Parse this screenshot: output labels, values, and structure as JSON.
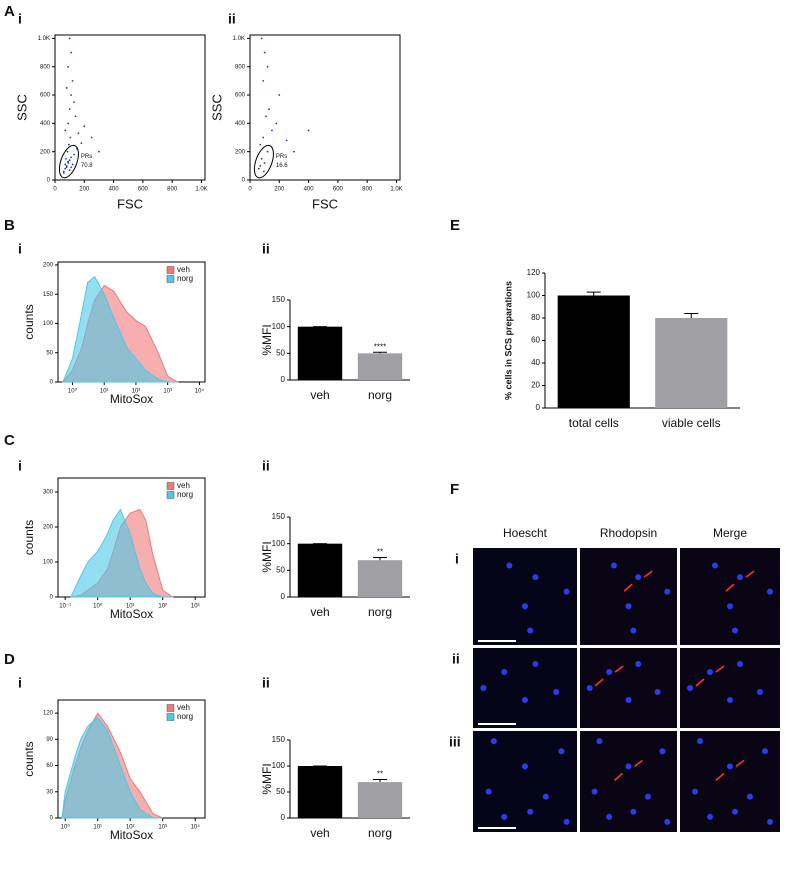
{
  "panel_labels": [
    "A",
    "i",
    "ii",
    "B",
    "i",
    "ii",
    "C",
    "i",
    "ii",
    "D",
    "i",
    "ii",
    "E",
    "F"
  ],
  "chart_data": [
    {
      "type": "scatter",
      "x_label": "FSC",
      "y_label": "SSC",
      "color": "#2233cc",
      "gate_label": "PRs",
      "gate_value": 70.8,
      "x": [
        60,
        70,
        80,
        90,
        100,
        110,
        120,
        85,
        95,
        105,
        75,
        130,
        150,
        90,
        100,
        110,
        70,
        120,
        140,
        180,
        200,
        250,
        90,
        110,
        130,
        100,
        80,
        160,
        300,
        60,
        80,
        90,
        100,
        70,
        110
      ],
      "y": [
        50,
        80,
        100,
        120,
        140,
        90,
        110,
        200,
        250,
        300,
        150,
        180,
        220,
        400,
        500,
        600,
        350,
        700,
        450,
        260,
        380,
        300,
        800,
        900,
        550,
        1000,
        650,
        330,
        200,
        60,
        90,
        130,
        70,
        110,
        160
      ],
      "xlim": [
        0,
        1024
      ],
      "ylim": [
        0,
        1024
      ],
      "xticks": [
        0,
        200,
        400,
        600,
        800,
        {
          "value": 1000,
          "label": "1.0K"
        }
      ],
      "yticks": [
        0,
        200,
        400,
        600,
        800,
        {
          "value": 1000,
          "label": "1.0K"
        }
      ]
    },
    {
      "type": "scatter",
      "x_label": "FSC",
      "y_label": "SSC",
      "color": "#2233cc",
      "gate_label": "PRs",
      "gate_value": 16.6,
      "x": [
        60,
        80,
        100,
        120,
        90,
        110,
        70,
        150,
        200,
        130,
        100,
        250,
        90,
        300,
        180,
        80,
        120,
        400,
        70,
        95
      ],
      "y": [
        80,
        150,
        120,
        200,
        300,
        450,
        250,
        350,
        600,
        500,
        900,
        280,
        700,
        200,
        400,
        1000,
        800,
        350,
        100,
        60
      ],
      "xlim": [
        0,
        1024
      ],
      "ylim": [
        0,
        1024
      ],
      "xticks": [
        0,
        200,
        400,
        600,
        800,
        {
          "value": 1000,
          "label": "1.0K"
        }
      ],
      "yticks": [
        0,
        200,
        400,
        600,
        800,
        {
          "value": 1000,
          "label": "1.0K"
        }
      ]
    },
    {
      "type": "line",
      "x_label": "MitoSox",
      "y_label": "counts",
      "log_x": true,
      "legend": "upper right",
      "x": [
        0.5,
        1,
        2,
        3,
        5,
        10,
        20,
        50,
        100,
        200,
        500,
        1000,
        2000
      ],
      "series": [
        {
          "name": "veh",
          "color": "#f07878",
          "values": [
            0,
            20,
            60,
            100,
            140,
            165,
            155,
            120,
            105,
            95,
            50,
            10,
            0
          ]
        },
        {
          "name": "norg",
          "color": "#4cc8e8",
          "values": [
            0,
            40,
            120,
            170,
            180,
            150,
            110,
            60,
            40,
            20,
            5,
            0,
            0
          ]
        }
      ],
      "xlim": [
        0.35,
        15000
      ],
      "ylim": [
        0,
        205
      ],
      "xticks": [
        {
          "value": 1,
          "label": "10⁰"
        },
        {
          "value": 10,
          "label": "10¹"
        },
        {
          "value": 100,
          "label": "10²"
        },
        {
          "value": 1000,
          "label": "10³"
        },
        {
          "value": 10000,
          "label": "10⁴"
        }
      ],
      "yticks": [
        0,
        50,
        100,
        150,
        200
      ]
    },
    {
      "type": "bar",
      "y_label": "%MFI",
      "categories": [
        "veh",
        "norg"
      ],
      "values": [
        100,
        50
      ],
      "errors": [
        0,
        2
      ],
      "colors": [
        "#000000",
        "#a0a0a4"
      ],
      "annotation": "****",
      "ylim": [
        0,
        150
      ],
      "yticks": [
        0,
        50,
        100,
        150
      ]
    },
    {
      "type": "line",
      "x_label": "MitoSox",
      "y_label": "counts",
      "log_x": true,
      "legend": "upper right",
      "x": [
        0.15,
        0.3,
        0.5,
        1,
        2,
        3,
        5,
        10,
        20,
        30,
        50,
        100,
        200
      ],
      "series": [
        {
          "name": "veh",
          "color": "#f07878",
          "values": [
            0,
            5,
            20,
            40,
            80,
            130,
            200,
            240,
            250,
            220,
            120,
            20,
            0
          ]
        },
        {
          "name": "norg",
          "color": "#4cc8e8",
          "values": [
            0,
            60,
            100,
            130,
            180,
            220,
            250,
            180,
            80,
            40,
            10,
            0,
            0
          ]
        }
      ],
      "xlim": [
        0.06,
        2000
      ],
      "ylim": [
        0,
        340
      ],
      "xticks": [
        {
          "value": 0.1,
          "label": "10⁻¹"
        },
        {
          "value": 1,
          "label": "10⁰"
        },
        {
          "value": 10,
          "label": "10¹"
        },
        {
          "value": 100,
          "label": "10²"
        },
        {
          "value": 1000,
          "label": "10³"
        }
      ],
      "yticks": [
        0,
        100,
        200,
        300
      ]
    },
    {
      "type": "bar",
      "y_label": "%MFI",
      "categories": [
        "veh",
        "norg"
      ],
      "values": [
        100,
        69
      ],
      "errors": [
        0,
        5
      ],
      "colors": [
        "#000000",
        "#a0a0a4"
      ],
      "annotation": "**",
      "ylim": [
        0,
        150
      ],
      "yticks": [
        0,
        50,
        100,
        150
      ]
    },
    {
      "type": "line",
      "x_label": "MitoSox",
      "y_label": "counts",
      "log_x": true,
      "legend": "upper right",
      "x": [
        0.8,
        1,
        2,
        3,
        5,
        10,
        20,
        50,
        100,
        200,
        500,
        1000
      ],
      "series": [
        {
          "name": "veh",
          "color": "#f07878",
          "values": [
            0,
            20,
            60,
            80,
            100,
            120,
            105,
            75,
            45,
            30,
            5,
            0
          ]
        },
        {
          "name": "norg",
          "color": "#4cc8e8",
          "values": [
            0,
            30,
            70,
            90,
            105,
            115,
            100,
            60,
            30,
            10,
            0,
            0
          ]
        }
      ],
      "xlim": [
        0.6,
        20000
      ],
      "ylim": [
        0,
        135
      ],
      "xticks": [
        {
          "value": 1,
          "label": "10⁰"
        },
        {
          "value": 10,
          "label": "10¹"
        },
        {
          "value": 100,
          "label": "10²"
        },
        {
          "value": 1000,
          "label": "10³"
        },
        {
          "value": 10000,
          "label": "10⁴"
        }
      ],
      "yticks": [
        0,
        30,
        60,
        90,
        120
      ]
    },
    {
      "type": "bar",
      "y_label": "%MFI",
      "categories": [
        "veh",
        "norg"
      ],
      "values": [
        100,
        69
      ],
      "errors": [
        0,
        5
      ],
      "colors": [
        "#000000",
        "#a0a0a4"
      ],
      "annotation": "**",
      "ylim": [
        0,
        150
      ],
      "yticks": [
        0,
        50,
        100,
        150
      ]
    },
    {
      "type": "bar",
      "y_label": "% cells in SCS preparations",
      "categories": [
        "total cells",
        "viable cells"
      ],
      "values": [
        100,
        80
      ],
      "errors": [
        3,
        4
      ],
      "colors": [
        "#000000",
        "#a0a0a4"
      ],
      "ylim": [
        0,
        120
      ],
      "yticks": [
        0,
        20,
        40,
        60,
        80,
        100,
        120
      ]
    }
  ],
  "figure_f": {
    "columns": [
      "Hoescht",
      "Rhodopsin",
      "Merge"
    ],
    "rows": [
      "i",
      "ii",
      "iii"
    ]
  }
}
